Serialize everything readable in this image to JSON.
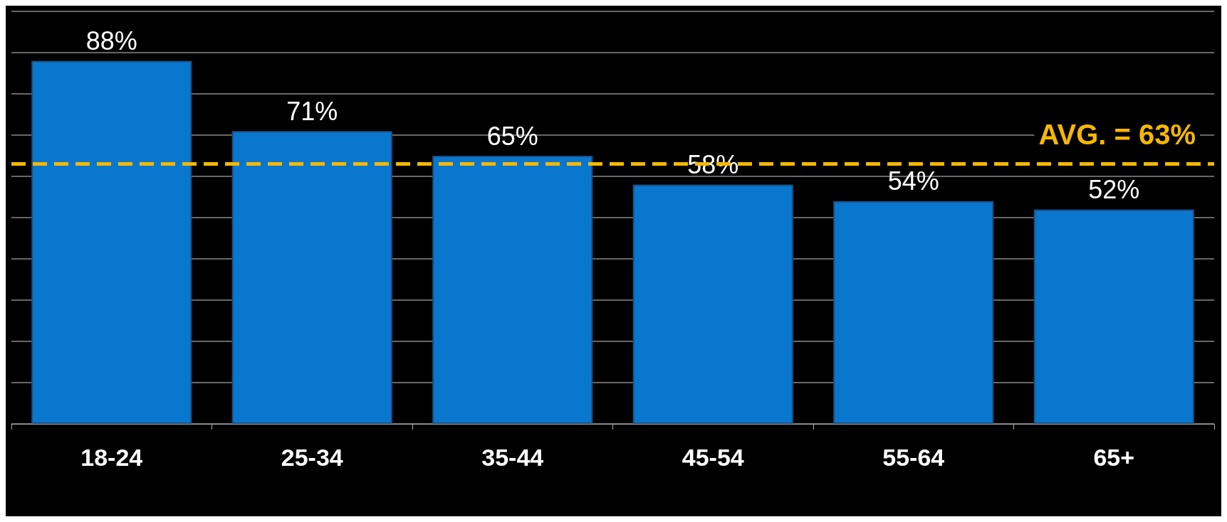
{
  "chart_data": {
    "type": "bar",
    "categories": [
      "18-24",
      "25-34",
      "35-44",
      "45-54",
      "55-64",
      "65+"
    ],
    "values": [
      88,
      71,
      65,
      58,
      54,
      52
    ],
    "color": "#0a77cf",
    "data_labels": true,
    "value_labels": [
      "88%",
      "71%",
      "65%",
      "58%",
      "54%",
      "52%"
    ],
    "ylim": [
      0,
      100
    ],
    "yticks": [
      {
        "value": 0,
        "label": null
      },
      {
        "value": 10,
        "label": null
      },
      {
        "value": 20,
        "label": null
      },
      {
        "value": 30,
        "label": null
      },
      {
        "value": 40,
        "label": null
      },
      {
        "value": 50,
        "label": null
      },
      {
        "value": 60,
        "label": null
      },
      {
        "value": 70,
        "label": null
      },
      {
        "value": 80,
        "label": null
      },
      {
        "value": 90,
        "label": null
      },
      {
        "value": 100,
        "label": null
      }
    ],
    "tick_labels": "x",
    "grid": "y",
    "ref_lines": [
      {
        "axis": "y",
        "value": 63,
        "label": "AVG. = 63%",
        "color": "#f5b800",
        "line_style": "dashed"
      }
    ]
  }
}
